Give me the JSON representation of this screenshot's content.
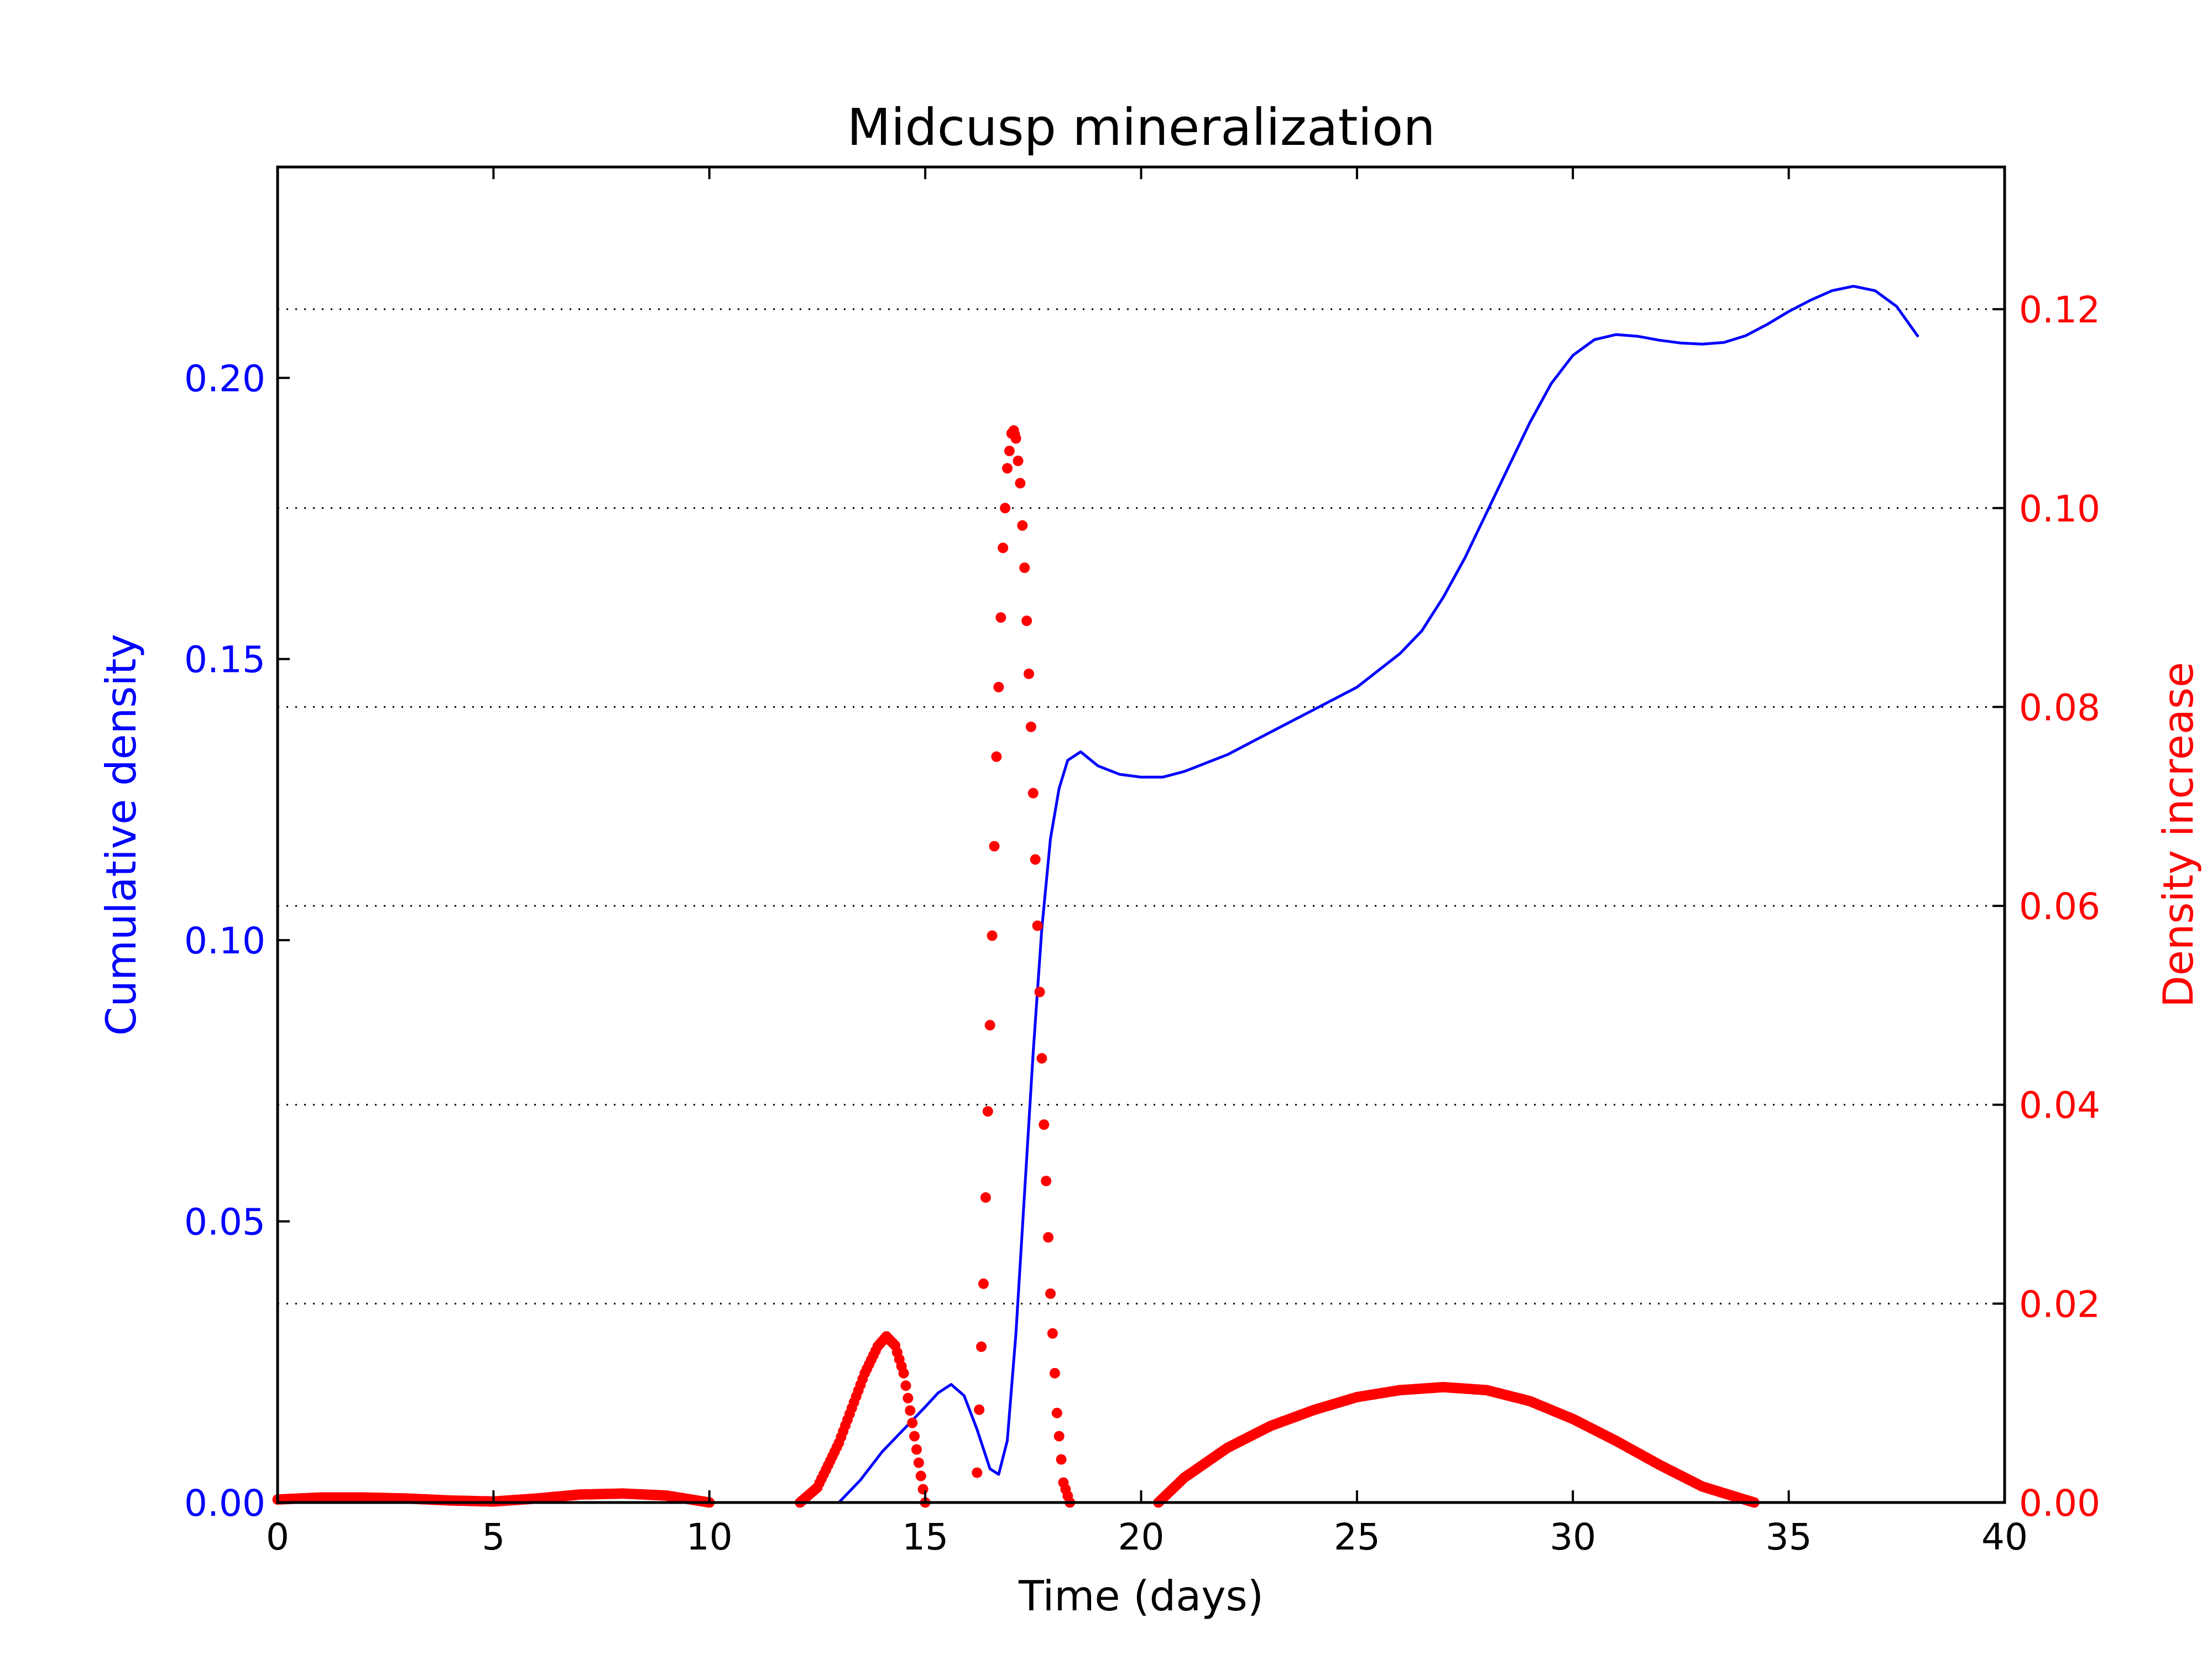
{
  "chart_data": {
    "type": "line",
    "title": "Midcusp mineralization",
    "xlabel": "Time (days)",
    "ylabel_left": "Cumulative density",
    "ylabel_right": "Density increase",
    "xlim": [
      0,
      40
    ],
    "ylim_left": [
      0,
      0.2375
    ],
    "ylim_right": [
      0,
      0.1343
    ],
    "x_ticks": [
      0,
      5,
      10,
      15,
      20,
      25,
      30,
      35,
      40
    ],
    "x_tick_labels": [
      "0",
      "5",
      "10",
      "15",
      "20",
      "25",
      "30",
      "35",
      "40"
    ],
    "y_left_ticks": [
      0,
      0.05,
      0.1,
      0.15,
      0.2
    ],
    "y_left_tick_labels": [
      "0.00",
      "0.05",
      "0.10",
      "0.15",
      "0.20"
    ],
    "y_right_ticks": [
      0,
      0.02,
      0.04,
      0.06,
      0.08,
      0.1,
      0.12
    ],
    "y_right_tick_labels": [
      "0.00",
      "0.02",
      "0.04",
      "0.06",
      "0.08",
      "0.10",
      "0.12"
    ],
    "grid": "horizontal dotted at right-axis ticks",
    "colors": {
      "left": "#0000ff",
      "right": "#ff0000",
      "grid": "#000000"
    },
    "series": [
      {
        "axis": "left",
        "style": "line",
        "color": "#0000ff",
        "x": [
          13.0,
          13.5,
          14.0,
          14.5,
          15.0,
          15.3,
          15.6,
          15.9,
          16.2,
          16.5,
          16.7,
          16.9,
          17.1,
          17.3,
          17.5,
          17.7,
          17.9,
          18.1,
          18.3,
          18.6,
          19.0,
          19.5,
          20.0,
          20.5,
          21.0,
          22.0,
          23.0,
          24.0,
          25.0,
          26.0,
          26.5,
          27.0,
          27.5,
          28.0,
          28.5,
          29.0,
          29.5,
          30.0,
          30.5,
          31.0,
          31.5,
          32.0,
          32.5,
          33.0,
          33.5,
          34.0,
          34.5,
          35.0,
          35.5,
          36.0,
          36.5,
          37.0,
          37.5,
          38.0
        ],
        "y": [
          0.0,
          0.004,
          0.009,
          0.013,
          0.017,
          0.0195,
          0.021,
          0.019,
          0.013,
          0.006,
          0.005,
          0.011,
          0.03,
          0.055,
          0.08,
          0.102,
          0.118,
          0.127,
          0.132,
          0.1335,
          0.131,
          0.1295,
          0.129,
          0.129,
          0.13,
          0.133,
          0.137,
          0.141,
          0.145,
          0.151,
          0.155,
          0.161,
          0.168,
          0.176,
          0.184,
          0.192,
          0.199,
          0.204,
          0.2068,
          0.2077,
          0.2074,
          0.2067,
          0.2062,
          0.206,
          0.2063,
          0.2075,
          0.2095,
          0.2118,
          0.2138,
          0.2155,
          0.2163,
          0.2155,
          0.2127,
          0.2073
        ]
      },
      {
        "axis": "right",
        "style": "dots",
        "color": "#ff0000",
        "segments": [
          {
            "x": [
              0,
              1,
              2,
              3,
              4,
              5,
              6,
              7,
              8,
              9,
              10
            ],
            "y": [
              0.0003,
              0.0005,
              0.0005,
              0.0004,
              0.0002,
              0.0001,
              0.0004,
              0.0008,
              0.0009,
              0.0007,
              0.0
            ]
          },
          {
            "x": [
              12.1,
              12.5,
              13.0,
              13.3,
              13.6,
              13.9,
              14.1,
              14.3,
              14.5,
              14.7,
              14.85,
              15.0
            ],
            "y": [
              0.0,
              0.0015,
              0.006,
              0.0095,
              0.013,
              0.0157,
              0.0167,
              0.0158,
              0.013,
              0.008,
              0.004,
              0.0
            ]
          },
          {
            "x": [
              16.2,
              16.35,
              16.5,
              16.65,
              16.8,
              16.9,
              17.0,
              17.05,
              17.1,
              17.2,
              17.3,
              17.45,
              17.6,
              17.75,
              17.9,
              18.05,
              18.2,
              18.35
            ],
            "y": [
              0.003,
              0.022,
              0.048,
              0.075,
              0.096,
              0.104,
              0.1075,
              0.1078,
              0.107,
              0.1025,
              0.094,
              0.078,
              0.058,
              0.038,
              0.021,
              0.009,
              0.002,
              0.0
            ]
          },
          {
            "x": [
              20.4,
              21,
              22,
              23,
              24,
              25,
              26,
              27,
              28,
              29,
              30,
              31,
              32,
              33,
              34.2
            ],
            "y": [
              0.0,
              0.0025,
              0.0055,
              0.0077,
              0.0093,
              0.0106,
              0.0113,
              0.0116,
              0.0113,
              0.0102,
              0.0084,
              0.0062,
              0.0038,
              0.0016,
              0.0
            ]
          }
        ]
      }
    ]
  }
}
